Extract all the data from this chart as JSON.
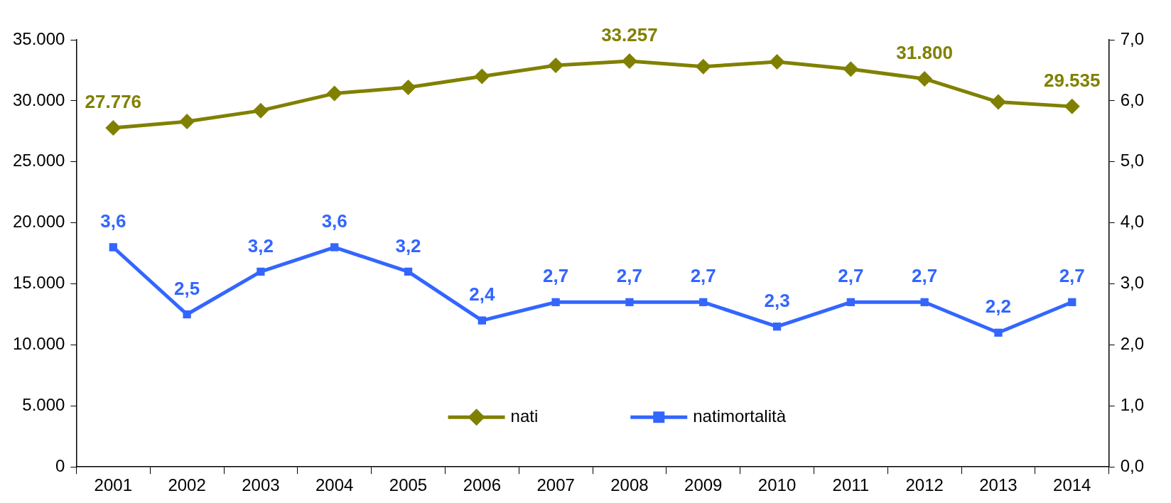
{
  "chart_data": {
    "type": "line",
    "categories": [
      "2001",
      "2002",
      "2003",
      "2004",
      "2005",
      "2006",
      "2007",
      "2008",
      "2009",
      "2010",
      "2011",
      "2012",
      "2013",
      "2014"
    ],
    "series": [
      {
        "name": "nati",
        "color": "#808000",
        "marker": "diamond",
        "values": [
          27776,
          28300,
          29200,
          30600,
          31100,
          32000,
          32900,
          33257,
          32800,
          33200,
          32600,
          31800,
          29900,
          29535
        ],
        "value_labels": [
          "27.776",
          null,
          null,
          null,
          null,
          null,
          null,
          "33.257",
          null,
          null,
          null,
          "31.800",
          null,
          "29.535"
        ]
      },
      {
        "name": "natimortalità",
        "color": "#3366ff",
        "marker": "square",
        "axis": "y2",
        "values": [
          3.6,
          2.5,
          3.2,
          3.6,
          3.2,
          2.4,
          2.7,
          2.7,
          2.7,
          2.3,
          2.7,
          2.7,
          2.2,
          2.7
        ],
        "value_labels": [
          "3,6",
          "2,5",
          "3,2",
          "3,6",
          "3,2",
          "2,4",
          "2,7",
          "2,7",
          "2,7",
          "2,3",
          "2,7",
          "2,7",
          "2,2",
          "2,7"
        ]
      }
    ],
    "ylim": [
      0,
      35000
    ],
    "yticks": [
      {
        "value": 0,
        "label": "0"
      },
      {
        "value": 5000,
        "label": "5.000"
      },
      {
        "value": 10000,
        "label": "10.000"
      },
      {
        "value": 15000,
        "label": "15.000"
      },
      {
        "value": 20000,
        "label": "20.000"
      },
      {
        "value": 25000,
        "label": "25.000"
      },
      {
        "value": 30000,
        "label": "30.000"
      },
      {
        "value": 35000,
        "label": "35.000"
      }
    ],
    "y2lim": [
      0,
      7
    ],
    "y2ticks": [
      {
        "value": 0,
        "label": "0,0"
      },
      {
        "value": 1,
        "label": "1,0"
      },
      {
        "value": 2,
        "label": "2,0"
      },
      {
        "value": 3,
        "label": "3,0"
      },
      {
        "value": 4,
        "label": "4,0"
      },
      {
        "value": 5,
        "label": "5,0"
      },
      {
        "value": 6,
        "label": "6,0"
      },
      {
        "value": 7,
        "label": "7,0"
      }
    ],
    "grid": false,
    "legend": "bottom",
    "line_style": "solid"
  }
}
